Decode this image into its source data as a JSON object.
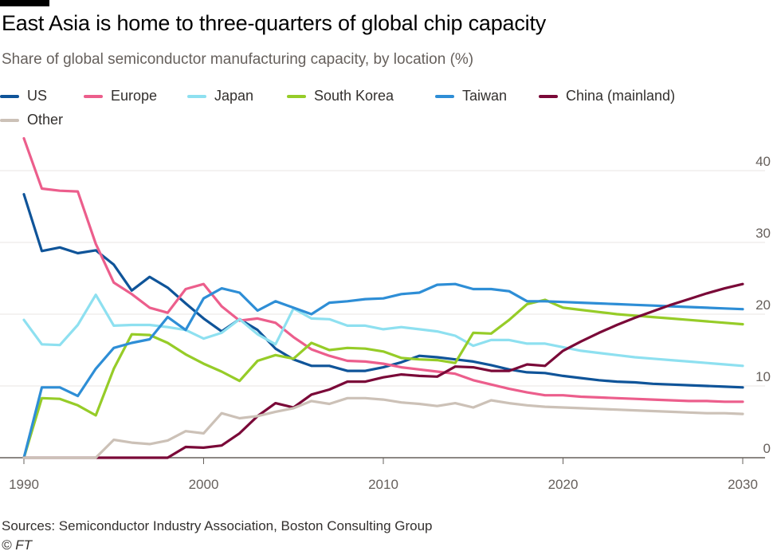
{
  "title": "East Asia is home to three-quarters of global chip capacity",
  "subtitle": "Share of global semiconductor manufacturing capacity, by location (%)",
  "source": "Sources: Semiconductor Industry Association, Boston Consulting Group",
  "credit": "© FT",
  "chart_data": {
    "type": "line",
    "title": "East Asia is home to three-quarters of global chip capacity",
    "ylabel": "Share of global semiconductor manufacturing capacity, by location (%)",
    "xlabel": "",
    "xlim": [
      1990,
      2030
    ],
    "ylim": [
      0,
      45
    ],
    "xticks": [
      1990,
      2000,
      2010,
      2020,
      2030
    ],
    "yticks": [
      0,
      10,
      20,
      30,
      40
    ],
    "x": [
      1990,
      1991,
      1992,
      1993,
      1994,
      1995,
      1996,
      1997,
      1998,
      1999,
      2000,
      2001,
      2002,
      2003,
      2004,
      2005,
      2006,
      2007,
      2008,
      2009,
      2010,
      2011,
      2012,
      2013,
      2014,
      2015,
      2016,
      2017,
      2018,
      2019,
      2020,
      2021,
      2022,
      2023,
      2024,
      2025,
      2026,
      2027,
      2028,
      2029,
      2030
    ],
    "series": [
      {
        "name": "US",
        "color": "#0f5499",
        "values": [
          36.7,
          28.8,
          29.3,
          28.5,
          28.9,
          26.9,
          23.3,
          25.2,
          23.7,
          21.5,
          19.4,
          17.6,
          19.3,
          17.8,
          15.2,
          13.7,
          12.8,
          12.8,
          12.1,
          12.1,
          12.6,
          13.3,
          14.2,
          14.0,
          13.7,
          13.4,
          12.9,
          12.3,
          11.9,
          11.8,
          11.4,
          11.1,
          10.8,
          10.6,
          10.5,
          10.3,
          10.2,
          10.1,
          10.0,
          9.9,
          9.8
        ]
      },
      {
        "name": "Europe",
        "color": "#ec5e8c",
        "values": [
          44.5,
          37.5,
          37.2,
          37.1,
          29.8,
          24.4,
          22.8,
          20.9,
          20.2,
          23.5,
          24.2,
          21.1,
          19.1,
          19.4,
          18.8,
          16.8,
          15.1,
          14.2,
          13.5,
          13.4,
          13.1,
          12.6,
          12.3,
          12.0,
          11.7,
          10.8,
          10.2,
          9.6,
          9.1,
          8.7,
          8.7,
          8.5,
          8.4,
          8.3,
          8.2,
          8.1,
          8.0,
          7.9,
          7.9,
          7.8,
          7.8
        ]
      },
      {
        "name": "Japan",
        "color": "#8ee0f0",
        "values": [
          19.2,
          15.8,
          15.7,
          18.5,
          22.7,
          18.4,
          18.5,
          18.5,
          18.2,
          17.8,
          16.6,
          17.4,
          19.3,
          17.2,
          15.8,
          20.8,
          19.4,
          19.3,
          18.4,
          18.4,
          17.9,
          18.2,
          17.9,
          17.6,
          17.0,
          15.6,
          16.4,
          16.4,
          15.9,
          15.9,
          15.4,
          14.9,
          14.6,
          14.3,
          14.0,
          13.8,
          13.6,
          13.4,
          13.2,
          13.0,
          12.8
        ]
      },
      {
        "name": "South Korea",
        "color": "#96cc28",
        "values": [
          0,
          8.3,
          8.2,
          7.3,
          5.9,
          12.4,
          17.2,
          17.1,
          16.0,
          14.4,
          13.1,
          12.0,
          10.7,
          13.5,
          14.3,
          13.8,
          16.0,
          15.0,
          15.3,
          15.2,
          14.8,
          13.9,
          13.7,
          13.6,
          13.2,
          17.4,
          17.3,
          19.2,
          21.4,
          22.0,
          20.9,
          20.6,
          20.3,
          20.0,
          19.8,
          19.6,
          19.4,
          19.2,
          19.0,
          18.8,
          18.6
        ]
      },
      {
        "name": "Taiwan",
        "color": "#2e8ed6",
        "values": [
          0,
          9.8,
          9.8,
          8.6,
          12.4,
          15.3,
          16.0,
          16.5,
          19.6,
          17.8,
          22.2,
          23.6,
          23.0,
          20.5,
          21.8,
          20.9,
          20.0,
          21.6,
          21.8,
          22.1,
          22.2,
          22.8,
          23.0,
          24.1,
          24.2,
          23.5,
          23.5,
          23.2,
          21.8,
          21.8,
          21.7,
          21.6,
          21.5,
          21.4,
          21.3,
          21.2,
          21.1,
          21.0,
          20.9,
          20.8,
          20.7
        ]
      },
      {
        "name": "China (mainland)",
        "color": "#7a0938",
        "values": [
          0,
          0,
          0,
          0,
          0,
          0,
          0,
          0,
          0,
          1.5,
          1.4,
          1.7,
          3.4,
          5.8,
          7.6,
          7.0,
          8.8,
          9.5,
          10.6,
          10.6,
          11.2,
          11.6,
          11.4,
          11.3,
          12.7,
          12.6,
          12.1,
          12.1,
          13.0,
          12.8,
          14.9,
          16.2,
          17.4,
          18.5,
          19.5,
          20.4,
          21.3,
          22.1,
          22.9,
          23.6,
          24.2
        ]
      },
      {
        "name": "Other",
        "color": "#ccc1b7",
        "values": [
          0,
          0,
          0,
          0,
          0,
          2.5,
          2.1,
          1.9,
          2.4,
          3.7,
          3.4,
          6.2,
          5.5,
          5.8,
          6.4,
          6.9,
          7.9,
          7.5,
          8.3,
          8.3,
          8.1,
          7.7,
          7.5,
          7.2,
          7.6,
          7.0,
          8.0,
          7.6,
          7.3,
          7.1,
          7.0,
          6.9,
          6.8,
          6.7,
          6.6,
          6.5,
          6.4,
          6.3,
          6.2,
          6.2,
          6.1
        ]
      }
    ],
    "legend": "top-left",
    "grid": true
  }
}
